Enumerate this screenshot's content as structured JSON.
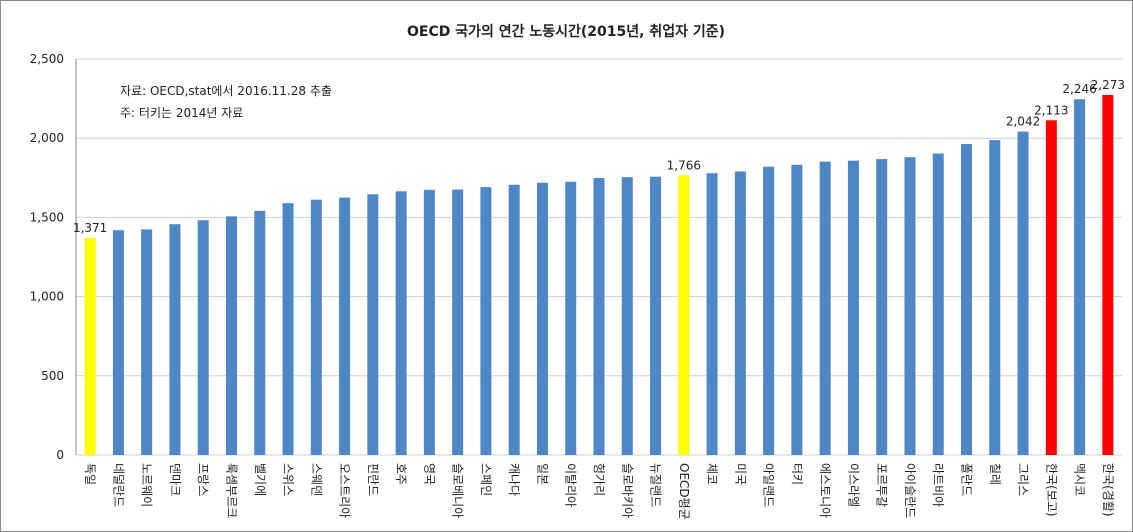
{
  "chart_data": {
    "type": "bar",
    "title": "OECD 국가의 연간 노동시간(2015년, 취업자 기준)",
    "annotations": [
      "자료: OECD,stat에서 2016.11.28 추출",
      "주: 터키는 2014년 자료"
    ],
    "categories": [
      "독일",
      "네덜란드",
      "노르웨이",
      "덴마크",
      "프랑스",
      "룩셈부르크",
      "벨기에",
      "스위스",
      "스웨덴",
      "오스트리아",
      "핀란드",
      "호주",
      "영국",
      "슬로베니아",
      "스페인",
      "캐나다",
      "일본",
      "이탈리아",
      "헝가리",
      "슬로바키아",
      "뉴질랜드",
      "OECD평균",
      "체코",
      "미국",
      "아일랜드",
      "터키",
      "에스토니아",
      "이스라엘",
      "포르투갈",
      "아이슬란드",
      "라트비아",
      "폴란드",
      "칠레",
      "그리스",
      "한국(보고)",
      "멕시코",
      "한국(경활)"
    ],
    "values": [
      1371,
      1419,
      1424,
      1457,
      1482,
      1507,
      1541,
      1590,
      1612,
      1625,
      1646,
      1665,
      1674,
      1676,
      1691,
      1706,
      1719,
      1725,
      1749,
      1754,
      1757,
      1766,
      1779,
      1790,
      1820,
      1832,
      1852,
      1858,
      1868,
      1880,
      1903,
      1963,
      1988,
      2042,
      2113,
      2246,
      2273
    ],
    "value_labels": [
      "1,371",
      null,
      null,
      null,
      null,
      null,
      null,
      null,
      null,
      null,
      null,
      null,
      null,
      null,
      null,
      null,
      null,
      null,
      null,
      null,
      null,
      "1,766",
      null,
      null,
      null,
      null,
      null,
      null,
      null,
      null,
      null,
      null,
      null,
      "2,042",
      "2,113",
      "2,246",
      "2,273"
    ],
    "colors": [
      "#ffff00",
      "#4f86c6",
      "#4f86c6",
      "#4f86c6",
      "#4f86c6",
      "#4f86c6",
      "#4f86c6",
      "#4f86c6",
      "#4f86c6",
      "#4f86c6",
      "#4f86c6",
      "#4f86c6",
      "#4f86c6",
      "#4f86c6",
      "#4f86c6",
      "#4f86c6",
      "#4f86c6",
      "#4f86c6",
      "#4f86c6",
      "#4f86c6",
      "#4f86c6",
      "#ffff00",
      "#4f86c6",
      "#4f86c6",
      "#4f86c6",
      "#4f86c6",
      "#4f86c6",
      "#4f86c6",
      "#4f86c6",
      "#4f86c6",
      "#4f86c6",
      "#4f86c6",
      "#4f86c6",
      "#4f86c6",
      "#ff0000",
      "#4f86c6",
      "#ff0000"
    ],
    "ylim": [
      0,
      2500
    ],
    "yticks": [
      0,
      500,
      {
        "value": 1000,
        "label": "1,000"
      },
      {
        "value": 1500,
        "label": "1,500"
      },
      {
        "value": 2000,
        "label": "2,000"
      },
      {
        "value": 2500,
        "label": "2,500"
      }
    ],
    "grid": true
  }
}
